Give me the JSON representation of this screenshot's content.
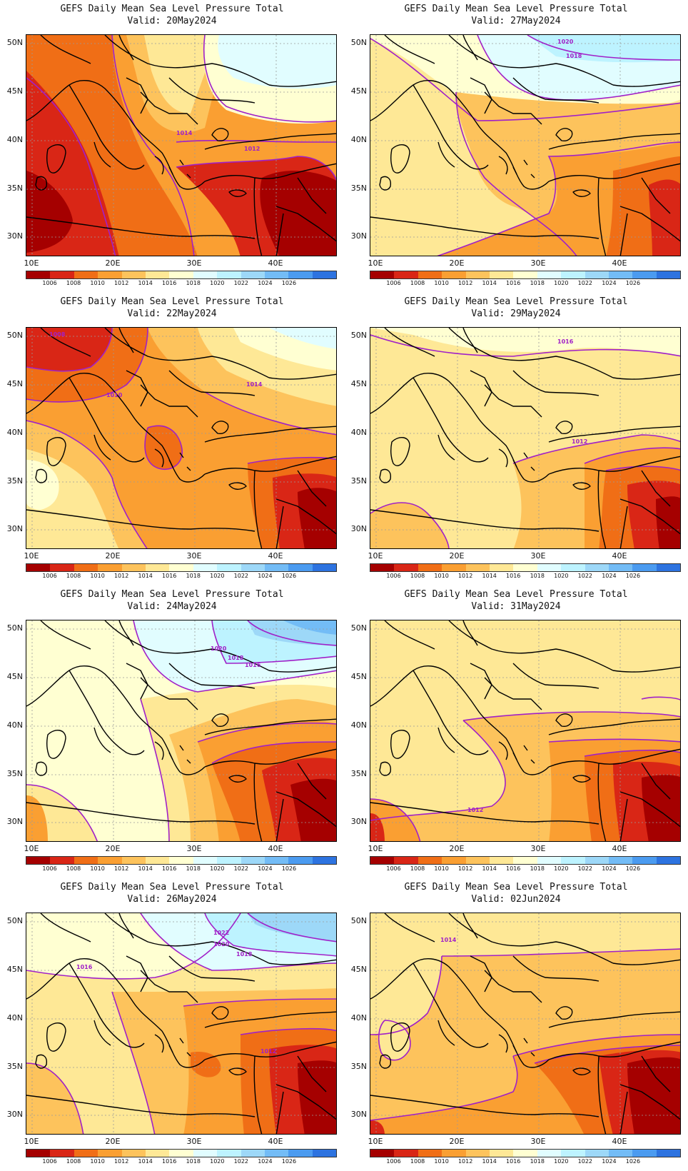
{
  "palette": {
    "colors": [
      "#a50000",
      "#d92616",
      "#f06e16",
      "#fa9f32",
      "#fdc35c",
      "#fee896",
      "#ffffd2",
      "#e1fdff",
      "#bdf3ff",
      "#9dd8f8",
      "#73bcf6",
      "#4b9bf0",
      "#2d73e0"
    ],
    "labels": [
      "1006",
      "1008",
      "1010",
      "1012",
      "1014",
      "1016",
      "1018",
      "1020",
      "1022",
      "1024",
      "1026"
    ],
    "contour_color": "#a020c8"
  },
  "axes": {
    "lat_labels": [
      "50N",
      "45N",
      "40N",
      "35N",
      "30N"
    ],
    "lon_labels": [
      "10E",
      "20E",
      "30E",
      "40E"
    ]
  },
  "panels": [
    {
      "title": "GEFS Daily Mean Sea Level Pressure Total",
      "valid": "Valid: 20May2024",
      "contour_labels": [
        "1014",
        "1012"
      ]
    },
    {
      "title": "GEFS Daily Mean Sea Level Pressure Total",
      "valid": "Valid: 27May2024",
      "contour_labels": [
        "1020",
        "1018"
      ]
    },
    {
      "title": "GEFS Daily Mean Sea Level Pressure Total",
      "valid": "Valid: 22May2024",
      "contour_labels": [
        "1008",
        "1010",
        "1014"
      ]
    },
    {
      "title": "GEFS Daily Mean Sea Level Pressure Total",
      "valid": "Valid: 29May2024",
      "contour_labels": [
        "1016",
        "1012"
      ]
    },
    {
      "title": "GEFS Daily Mean Sea Level Pressure Total",
      "valid": "Valid: 24May2024",
      "contour_labels": [
        "1020",
        "1018",
        "1016"
      ]
    },
    {
      "title": "GEFS Daily Mean Sea Level Pressure Total",
      "valid": "Valid: 31May2024",
      "contour_labels": [
        "1012"
      ]
    },
    {
      "title": "GEFS Daily Mean Sea Level Pressure Total",
      "valid": "Valid: 26May2024",
      "contour_labels": [
        "1022",
        "1020",
        "1018",
        "1016",
        "1012"
      ]
    },
    {
      "title": "GEFS Daily Mean Sea Level Pressure Total",
      "valid": "Valid: 02Jun2024",
      "contour_labels": [
        "1014"
      ]
    }
  ]
}
